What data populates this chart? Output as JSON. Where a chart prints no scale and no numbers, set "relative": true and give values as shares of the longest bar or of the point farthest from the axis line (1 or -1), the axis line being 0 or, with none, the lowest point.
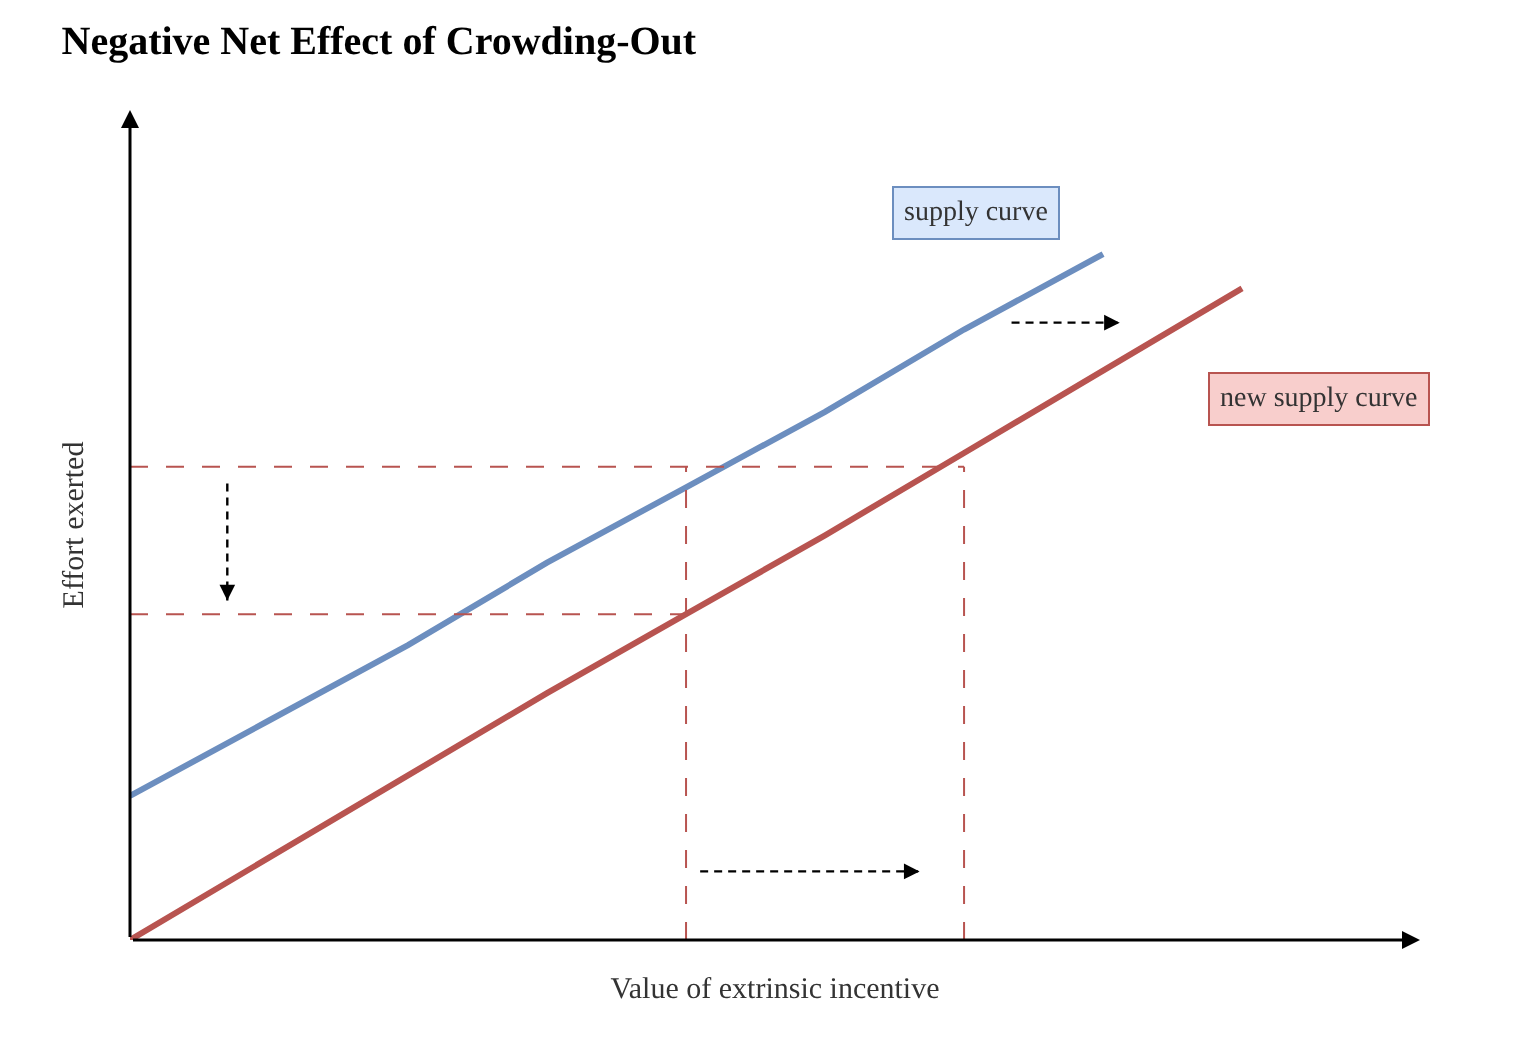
{
  "chart_data": {
    "type": "line",
    "title": "Negative Net Effect of Crowding-Out",
    "xlabel": "Value of extrinsic incentive",
    "ylabel": "Effort exerted",
    "relative": true,
    "legend": false,
    "marker": "none",
    "line_style": "solid",
    "categories": [
      null,
      null,
      null,
      null,
      null,
      null,
      null,
      null,
      null
    ],
    "series": [
      {
        "name": "supply curve",
        "color": "#6c8ebf",
        "values": [
          0.21,
          0.32,
          0.43,
          0.55,
          0.66,
          0.77,
          0.89,
          1.0,
          null
        ]
      },
      {
        "name": "new supply curve",
        "color": "#b85450",
        "values": [
          0,
          0.12,
          0.24,
          0.36,
          0.475,
          0.59,
          0.71,
          0.83,
          0.95
        ]
      }
    ],
    "ref_lines": [
      {
        "axis": "y",
        "value": 0.69,
        "color": "#b85450",
        "line_style": "dashed"
      },
      {
        "axis": "y",
        "value": 0.475,
        "color": "#b85450",
        "line_style": "dashed"
      }
    ]
  }
}
